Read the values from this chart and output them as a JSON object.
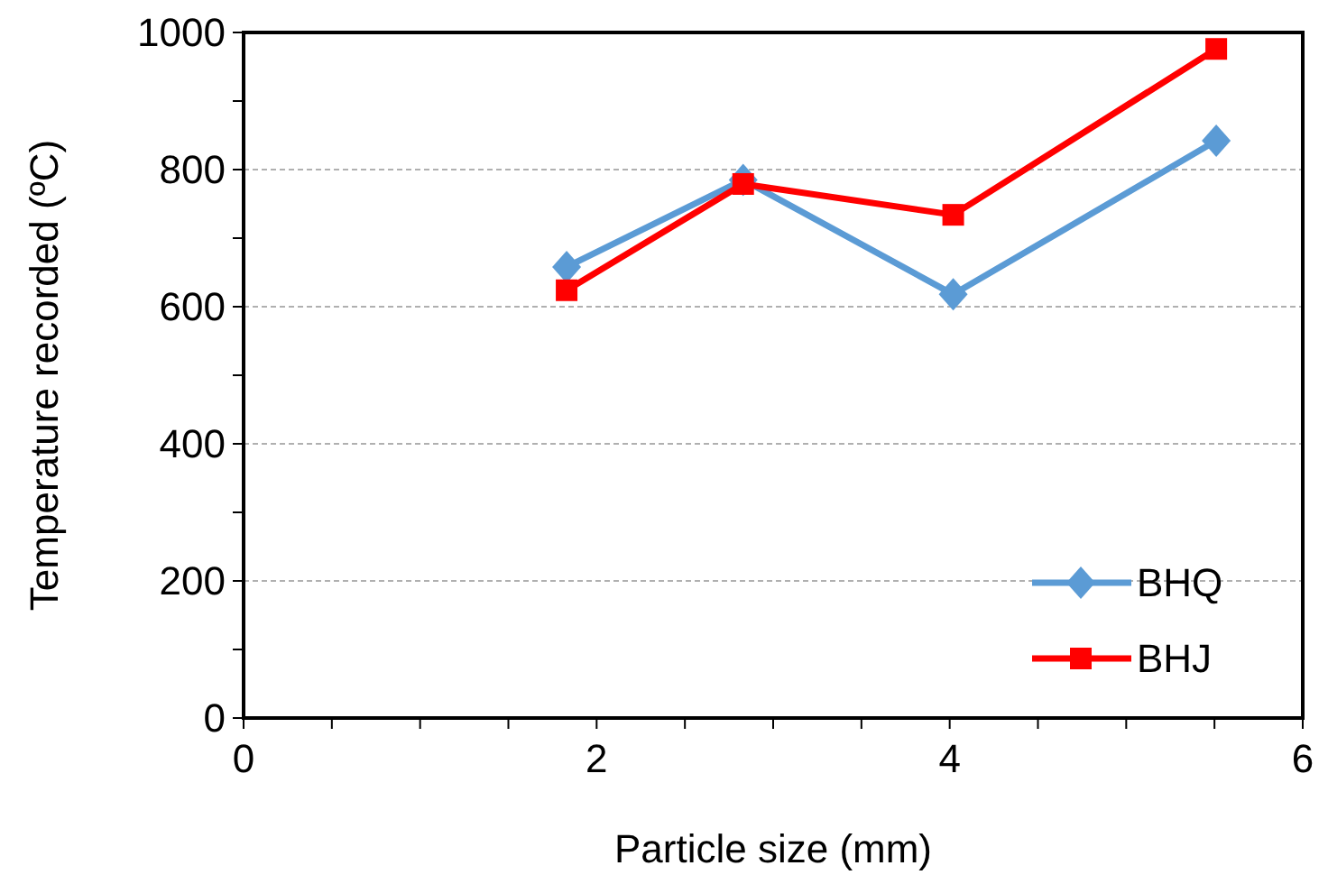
{
  "chart_data": {
    "type": "line",
    "xlabel": "Particle size (mm)",
    "ylabel": "Temperature recorded (ºC)",
    "x": [
      1.83,
      2.83,
      4.02,
      5.51
    ],
    "xlim": [
      0,
      6
    ],
    "xticks": [
      0,
      {
        "value": 0.5,
        "label": null
      },
      {
        "value": 1,
        "label": null
      },
      {
        "value": 1.5,
        "label": null
      },
      2,
      {
        "value": 2.5,
        "label": null
      },
      {
        "value": 3,
        "label": null
      },
      {
        "value": 3.5,
        "label": null
      },
      4,
      {
        "value": 4.5,
        "label": null
      },
      {
        "value": 5,
        "label": null
      },
      {
        "value": 5.5,
        "label": null
      },
      6
    ],
    "ylim": [
      0,
      1000
    ],
    "yticks": [
      0,
      {
        "value": 100,
        "label": null
      },
      200,
      {
        "value": 300,
        "label": null
      },
      400,
      {
        "value": 500,
        "label": null
      },
      600,
      {
        "value": 700,
        "label": null
      },
      800,
      {
        "value": 900,
        "label": null
      },
      1000
    ],
    "grid": "y",
    "legend": "bottom right",
    "series": [
      {
        "name": "BHQ",
        "color": "#5b9bd5",
        "marker": "diamond",
        "values": [
          658,
          785,
          618,
          842
        ]
      },
      {
        "name": "BHJ",
        "color": "#ff0000",
        "marker": "square",
        "values": [
          624,
          779,
          734,
          976
        ]
      }
    ]
  }
}
